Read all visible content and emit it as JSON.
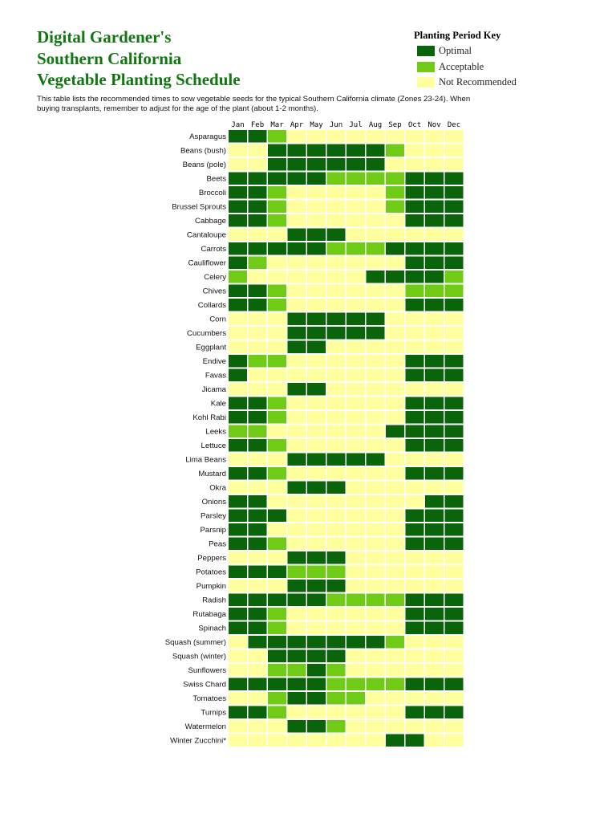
{
  "title": {
    "line1": "Digital Gardener's",
    "line2": "Southern California",
    "line3": "Vegetable Planting Schedule"
  },
  "description": "This table lists the recommended times to sow vegetable seeds for the typical Southern California climate (Zones 23-24). When buying transplants, remember to adjust for the age of the plant (about 1-2 months).",
  "key": {
    "title": "Planting Period Key",
    "items": [
      {
        "label": "Optimal",
        "color": "#0a6409"
      },
      {
        "label": "Acceptable",
        "color": "#6fcb16"
      },
      {
        "label": "Not Recommended",
        "color": "#ffff9d"
      }
    ]
  },
  "chart_data": {
    "type": "heatmap",
    "legend": [
      "Optimal",
      "Acceptable",
      "Not Recommended"
    ],
    "value_codes": {
      "2": "Optimal",
      "1": "Acceptable",
      "0": "Not Recommended"
    },
    "colors": {
      "2": "#0a6409",
      "1": "#6fcb16",
      "0": "#ffff9d"
    },
    "months": [
      "Jan",
      "Feb",
      "Mar",
      "Apr",
      "May",
      "Jun",
      "Jul",
      "Aug",
      "Sep",
      "Oct",
      "Nov",
      "Dec"
    ],
    "rows": [
      {
        "crop": "Asparagus",
        "values": [
          2,
          2,
          1,
          0,
          0,
          0,
          0,
          0,
          0,
          0,
          0,
          0
        ]
      },
      {
        "crop": "Beans (bush)",
        "values": [
          0,
          0,
          2,
          2,
          2,
          2,
          2,
          2,
          1,
          0,
          0,
          0
        ]
      },
      {
        "crop": "Beans (pole)",
        "values": [
          0,
          0,
          2,
          2,
          2,
          2,
          2,
          2,
          0,
          0,
          0,
          0
        ]
      },
      {
        "crop": "Beets",
        "values": [
          2,
          2,
          2,
          2,
          2,
          1,
          1,
          1,
          1,
          2,
          2,
          2
        ]
      },
      {
        "crop": "Broccoli",
        "values": [
          2,
          2,
          1,
          0,
          0,
          0,
          0,
          0,
          1,
          2,
          2,
          2
        ]
      },
      {
        "crop": "Brussel Sprouts",
        "values": [
          2,
          2,
          1,
          0,
          0,
          0,
          0,
          0,
          1,
          2,
          2,
          2
        ]
      },
      {
        "crop": "Cabbage",
        "values": [
          2,
          2,
          1,
          0,
          0,
          0,
          0,
          0,
          0,
          2,
          2,
          2
        ]
      },
      {
        "crop": "Cantaloupe",
        "values": [
          0,
          0,
          0,
          2,
          2,
          2,
          0,
          0,
          0,
          0,
          0,
          0
        ]
      },
      {
        "crop": "Carrots",
        "values": [
          2,
          2,
          2,
          2,
          2,
          1,
          1,
          1,
          2,
          2,
          2,
          2
        ]
      },
      {
        "crop": "Cauliflower",
        "values": [
          2,
          1,
          0,
          0,
          0,
          0,
          0,
          0,
          0,
          2,
          2,
          2
        ]
      },
      {
        "crop": "Celery",
        "values": [
          1,
          0,
          0,
          0,
          0,
          0,
          0,
          2,
          2,
          2,
          2,
          1
        ]
      },
      {
        "crop": "Chives",
        "values": [
          2,
          2,
          1,
          0,
          0,
          0,
          0,
          0,
          0,
          1,
          1,
          1
        ]
      },
      {
        "crop": "Collards",
        "values": [
          2,
          2,
          1,
          0,
          0,
          0,
          0,
          0,
          0,
          2,
          2,
          2
        ]
      },
      {
        "crop": "Corn",
        "values": [
          0,
          0,
          0,
          2,
          2,
          2,
          2,
          2,
          0,
          0,
          0,
          0
        ]
      },
      {
        "crop": "Cucumbers",
        "values": [
          0,
          0,
          0,
          2,
          2,
          2,
          2,
          2,
          0,
          0,
          0,
          0
        ]
      },
      {
        "crop": "Eggplant",
        "values": [
          0,
          0,
          0,
          2,
          2,
          0,
          0,
          0,
          0,
          0,
          0,
          0
        ]
      },
      {
        "crop": "Endive",
        "values": [
          2,
          1,
          1,
          0,
          0,
          0,
          0,
          0,
          0,
          2,
          2,
          2
        ]
      },
      {
        "crop": "Favas",
        "values": [
          2,
          0,
          0,
          0,
          0,
          0,
          0,
          0,
          0,
          2,
          2,
          2
        ]
      },
      {
        "crop": "Jicama",
        "values": [
          0,
          0,
          0,
          2,
          2,
          0,
          0,
          0,
          0,
          0,
          0,
          0
        ]
      },
      {
        "crop": "Kale",
        "values": [
          2,
          2,
          1,
          0,
          0,
          0,
          0,
          0,
          0,
          2,
          2,
          2
        ]
      },
      {
        "crop": "Kohl Rabi",
        "values": [
          2,
          2,
          1,
          0,
          0,
          0,
          0,
          0,
          0,
          2,
          2,
          2
        ]
      },
      {
        "crop": "Leeks",
        "values": [
          1,
          1,
          0,
          0,
          0,
          0,
          0,
          0,
          2,
          2,
          2,
          2
        ]
      },
      {
        "crop": "Lettuce",
        "values": [
          2,
          2,
          1,
          0,
          0,
          0,
          0,
          0,
          0,
          2,
          2,
          2
        ]
      },
      {
        "crop": "Lima Beans",
        "values": [
          0,
          0,
          0,
          2,
          2,
          2,
          2,
          2,
          0,
          0,
          0,
          0
        ]
      },
      {
        "crop": "Mustard",
        "values": [
          2,
          2,
          1,
          0,
          0,
          0,
          0,
          0,
          0,
          2,
          2,
          2
        ]
      },
      {
        "crop": "Okra",
        "values": [
          0,
          0,
          0,
          2,
          2,
          2,
          0,
          0,
          0,
          0,
          0,
          0
        ]
      },
      {
        "crop": "Onions",
        "values": [
          2,
          2,
          0,
          0,
          0,
          0,
          0,
          0,
          0,
          0,
          2,
          2
        ]
      },
      {
        "crop": "Parsley",
        "values": [
          2,
          2,
          2,
          0,
          0,
          0,
          0,
          0,
          0,
          2,
          2,
          2
        ]
      },
      {
        "crop": "Parsnip",
        "values": [
          2,
          2,
          0,
          0,
          0,
          0,
          0,
          0,
          0,
          2,
          2,
          2
        ]
      },
      {
        "crop": "Peas",
        "values": [
          2,
          2,
          1,
          0,
          0,
          0,
          0,
          0,
          0,
          2,
          2,
          2
        ]
      },
      {
        "crop": "Peppers",
        "values": [
          0,
          0,
          0,
          2,
          2,
          2,
          0,
          0,
          0,
          0,
          0,
          0
        ]
      },
      {
        "crop": "Potatoes",
        "values": [
          2,
          2,
          2,
          1,
          1,
          1,
          0,
          0,
          0,
          0,
          0,
          0
        ]
      },
      {
        "crop": "Pumpkin",
        "values": [
          0,
          0,
          0,
          2,
          2,
          2,
          0,
          0,
          0,
          0,
          0,
          0
        ]
      },
      {
        "crop": "Radish",
        "values": [
          2,
          2,
          2,
          2,
          2,
          1,
          1,
          1,
          1,
          2,
          2,
          2
        ]
      },
      {
        "crop": "Rutabaga",
        "values": [
          2,
          2,
          1,
          0,
          0,
          0,
          0,
          0,
          0,
          2,
          2,
          2
        ]
      },
      {
        "crop": "Spinach",
        "values": [
          2,
          2,
          1,
          0,
          0,
          0,
          0,
          0,
          0,
          2,
          2,
          2
        ]
      },
      {
        "crop": "Squash (summer)",
        "values": [
          0,
          2,
          2,
          2,
          2,
          2,
          2,
          2,
          1,
          0,
          0,
          0
        ]
      },
      {
        "crop": "Squash (winter)",
        "values": [
          0,
          0,
          2,
          2,
          2,
          2,
          0,
          0,
          0,
          0,
          0,
          0
        ]
      },
      {
        "crop": "Sunflowers",
        "values": [
          0,
          0,
          1,
          1,
          2,
          1,
          0,
          0,
          0,
          0,
          0,
          0
        ]
      },
      {
        "crop": "Swiss Chard",
        "values": [
          2,
          2,
          2,
          2,
          2,
          1,
          1,
          1,
          1,
          2,
          2,
          2
        ]
      },
      {
        "crop": "Tomatoes",
        "values": [
          0,
          0,
          1,
          2,
          2,
          1,
          1,
          0,
          0,
          0,
          0,
          0
        ]
      },
      {
        "crop": "Turnips",
        "values": [
          2,
          2,
          1,
          0,
          0,
          0,
          0,
          0,
          0,
          2,
          2,
          2
        ]
      },
      {
        "crop": "Watermelon",
        "values": [
          0,
          0,
          0,
          2,
          2,
          1,
          0,
          0,
          0,
          0,
          0,
          0
        ]
      },
      {
        "crop": "Winter Zucchini*",
        "values": [
          0,
          0,
          0,
          0,
          0,
          0,
          0,
          0,
          2,
          2,
          0,
          0
        ]
      }
    ]
  }
}
